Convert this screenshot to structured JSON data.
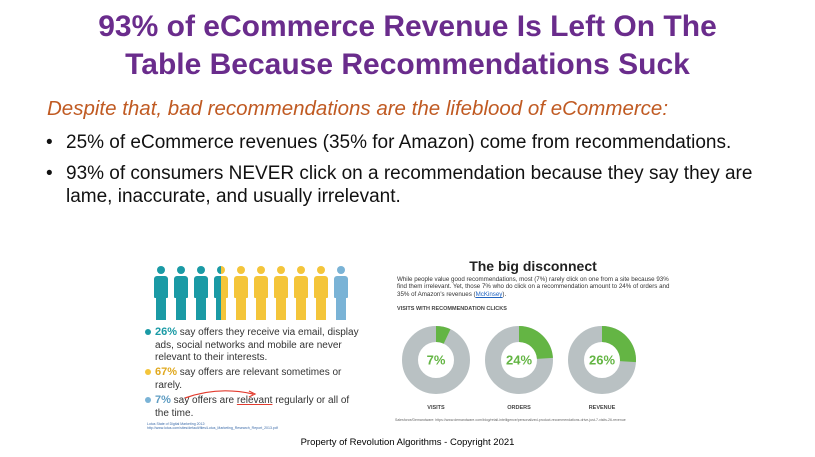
{
  "slide": {
    "title_line1": "93% of  eCommerce Revenue Is Left On The",
    "title_line2": "Table Because Recommendations Suck",
    "subtitle": "Despite that, bad recommendations are the lifeblood of eCommerce:",
    "bullets": [
      {
        "text": "25% of eCommerce revenues (35% for Amazon) come from recommendations."
      },
      {
        "text": "93% of consumers NEVER click on a recommendation because they say they are lame, inaccurate, and usually irrelevant."
      }
    ],
    "footer": "Property of Revolution Algorithms - Copyright 2021"
  },
  "left_graphic": {
    "people_colors": [
      "#1a9aa5",
      "#1a9aa5",
      "#1a9aa5",
      "split",
      "#f4c53a",
      "#f4c53a",
      "#f4c53a",
      "#f4c53a",
      "#f4c53a",
      "#7ab3d6"
    ],
    "split_left_color": "#1a9aa5",
    "split_right_color": "#f4c53a",
    "stats": [
      {
        "pct": "26%",
        "text": " say offers they receive via email, display ads, social networks and mobile are never relevant to their interests.",
        "color": "#1a9aa5"
      },
      {
        "pct": "67%",
        "text": " say offers are relevant sometimes or rarely.",
        "color": "#f4c53a"
      },
      {
        "pct": "7%",
        "text_before": " say offers are ",
        "underlined": "relevant",
        "text_after": " regularly or all of the time.",
        "color": "#7ab3d6"
      }
    ],
    "source": "Lotus State of Digital Marketing 2012: http://www.lotus.com/sites/default/files/Lotus_Marketing_Research_Report_2013.pdf"
  },
  "right_graphic": {
    "title": "The big disconnect",
    "paragraph_main": "While people value good recommendations, most (7%) rarely click on one from a site because 93% find them irrelevant. Yet, those 7% who do click on a recommendation amount to 24% of orders and 35% of Amazon's revenues (",
    "paragraph_link": "McKinsey",
    "paragraph_end": ").",
    "section_heading": "VISITS WITH RECOMMENDATION CLICKS",
    "donuts": [
      {
        "label": "VISITS",
        "pct_text": "7%",
        "value": 7
      },
      {
        "label": "ORDERS",
        "pct_text": "24%",
        "value": 24
      },
      {
        "label": "REVENUE",
        "pct_text": "26%",
        "value": 26
      }
    ],
    "colors": {
      "ring": "#b9c1c3",
      "fill": "#64b544"
    },
    "source": "Salesforce/Demandware: https://www.demandware.com/blog/retail-intelligence/personalized-product-recommendations-drive-just-7-visits-26-revenue"
  }
}
